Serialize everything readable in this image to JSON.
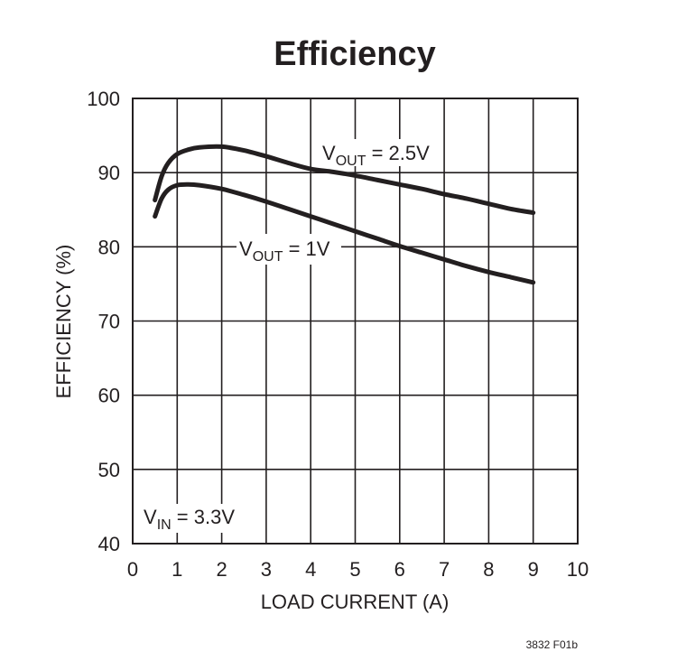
{
  "chart_data": {
    "type": "line",
    "title": "Efficiency",
    "xlabel": "LOAD CURRENT (A)",
    "ylabel": "EFFICIENCY (%)",
    "xlim": [
      0,
      10
    ],
    "ylim": [
      40,
      100
    ],
    "xticks": [
      "0",
      "1",
      "2",
      "3",
      "4",
      "5",
      "6",
      "7",
      "8",
      "9",
      "10"
    ],
    "yticks": [
      "40",
      "50",
      "60",
      "70",
      "80",
      "90",
      "100"
    ],
    "grid": true,
    "series": [
      {
        "name": "VOUT = 2.5V",
        "label_main": "V",
        "label_sub": "OUT",
        "label_rest": " = 2.5V",
        "x": [
          0.5,
          0.65,
          0.8,
          1.0,
          1.25,
          1.5,
          2.0,
          2.5,
          3.0,
          3.5,
          4.0,
          4.5,
          5.0,
          5.5,
          6.0,
          6.5,
          7.0,
          7.5,
          8.0,
          8.5,
          9.0
        ],
        "y": [
          86.3,
          89.5,
          91.3,
          92.5,
          93.1,
          93.4,
          93.5,
          93.0,
          92.2,
          91.3,
          90.5,
          90.1,
          89.6,
          89.0,
          88.4,
          87.8,
          87.1,
          86.5,
          85.8,
          85.1,
          84.6
        ]
      },
      {
        "name": "VOUT = 1V",
        "label_main": "V",
        "label_sub": "OUT",
        "label_rest": " = 1V",
        "x": [
          0.5,
          0.65,
          0.8,
          1.0,
          1.25,
          1.5,
          2.0,
          2.5,
          3.0,
          3.5,
          4.0,
          4.5,
          5.0,
          5.5,
          6.0,
          6.5,
          7.0,
          7.5,
          8.0,
          8.5,
          9.0
        ],
        "y": [
          84.1,
          86.5,
          87.7,
          88.3,
          88.4,
          88.3,
          87.8,
          87.0,
          86.1,
          85.1,
          84.1,
          83.1,
          82.1,
          81.1,
          80.1,
          79.2,
          78.3,
          77.4,
          76.6,
          75.9,
          75.2
        ]
      }
    ],
    "annotations": {
      "vin_main": "V",
      "vin_sub": "IN",
      "vin_rest": " = 3.3V"
    },
    "figure_code": "3832 F01b"
  }
}
